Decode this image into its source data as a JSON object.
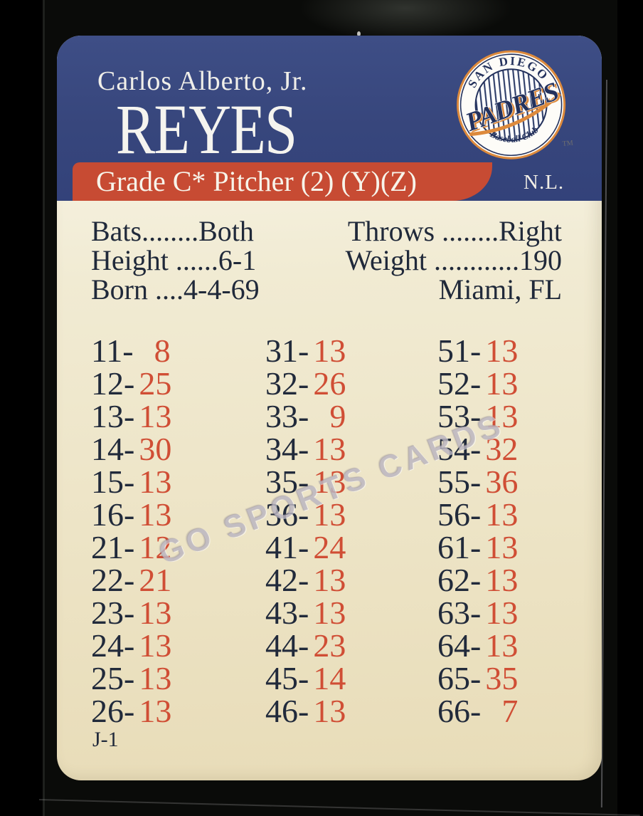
{
  "card": {
    "player": {
      "first_line": "Carlos Alberto, Jr.",
      "last_name": "REYES"
    },
    "grade_banner": {
      "text": "Grade C* Pitcher (2) (Y)(Z)",
      "league": "N.L."
    },
    "logo": {
      "top_arc": "SAN DIEGO",
      "name": "PADRES",
      "bottom_arc": "Baseball Club",
      "tm": "TM"
    },
    "stats": {
      "left": [
        "Bats........Both",
        "Height ......6-1",
        "Born ....4-4-69"
      ],
      "right": [
        "Throws ........Right",
        "Weight ............190",
        "Miami, FL"
      ]
    },
    "grid": {
      "columns": [
        {
          "rows": [
            {
              "d": "11-",
              "v": "8"
            },
            {
              "d": "12-",
              "v": "25"
            },
            {
              "d": "13-",
              "v": "13"
            },
            {
              "d": "14-",
              "v": "30"
            },
            {
              "d": "15-",
              "v": "13"
            },
            {
              "d": "16-",
              "v": "13"
            },
            {
              "d": "21-",
              "v": "12"
            },
            {
              "d": "22-",
              "v": "21"
            },
            {
              "d": "23-",
              "v": "13"
            },
            {
              "d": "24-",
              "v": "13"
            },
            {
              "d": "25-",
              "v": "13"
            },
            {
              "d": "26-",
              "v": "13"
            }
          ]
        },
        {
          "rows": [
            {
              "d": "31-",
              "v": "13"
            },
            {
              "d": "32-",
              "v": "26"
            },
            {
              "d": "33-",
              "v": "9"
            },
            {
              "d": "34-",
              "v": "13"
            },
            {
              "d": "35-",
              "v": "13"
            },
            {
              "d": "36-",
              "v": "13"
            },
            {
              "d": "41-",
              "v": "24"
            },
            {
              "d": "42-",
              "v": "13"
            },
            {
              "d": "43-",
              "v": "13"
            },
            {
              "d": "44-",
              "v": "23"
            },
            {
              "d": "45-",
              "v": "14"
            },
            {
              "d": "46-",
              "v": "13"
            }
          ]
        },
        {
          "rows": [
            {
              "d": "51-",
              "v": "13"
            },
            {
              "d": "52-",
              "v": "13"
            },
            {
              "d": "53-",
              "v": "13"
            },
            {
              "d": "54-",
              "v": "32"
            },
            {
              "d": "55-",
              "v": "36"
            },
            {
              "d": "56-",
              "v": "13"
            },
            {
              "d": "61-",
              "v": "13"
            },
            {
              "d": "62-",
              "v": "13"
            },
            {
              "d": "63-",
              "v": "13"
            },
            {
              "d": "64-",
              "v": "13"
            },
            {
              "d": "65-",
              "v": "35"
            },
            {
              "d": "66-",
              "v": "7"
            }
          ]
        }
      ]
    },
    "watermark": "GO SPORTS CARDS",
    "footer": {
      "set_code": "J-1"
    },
    "colors": {
      "header_blue": "#37467c",
      "banner_red": "#c74b33",
      "card_cream": "#ede4c6",
      "ink_navy": "#20293a",
      "result_red": "#d04e35",
      "logo_orange": "#dd8a3c",
      "watermark_gray": "#a39bac"
    }
  }
}
